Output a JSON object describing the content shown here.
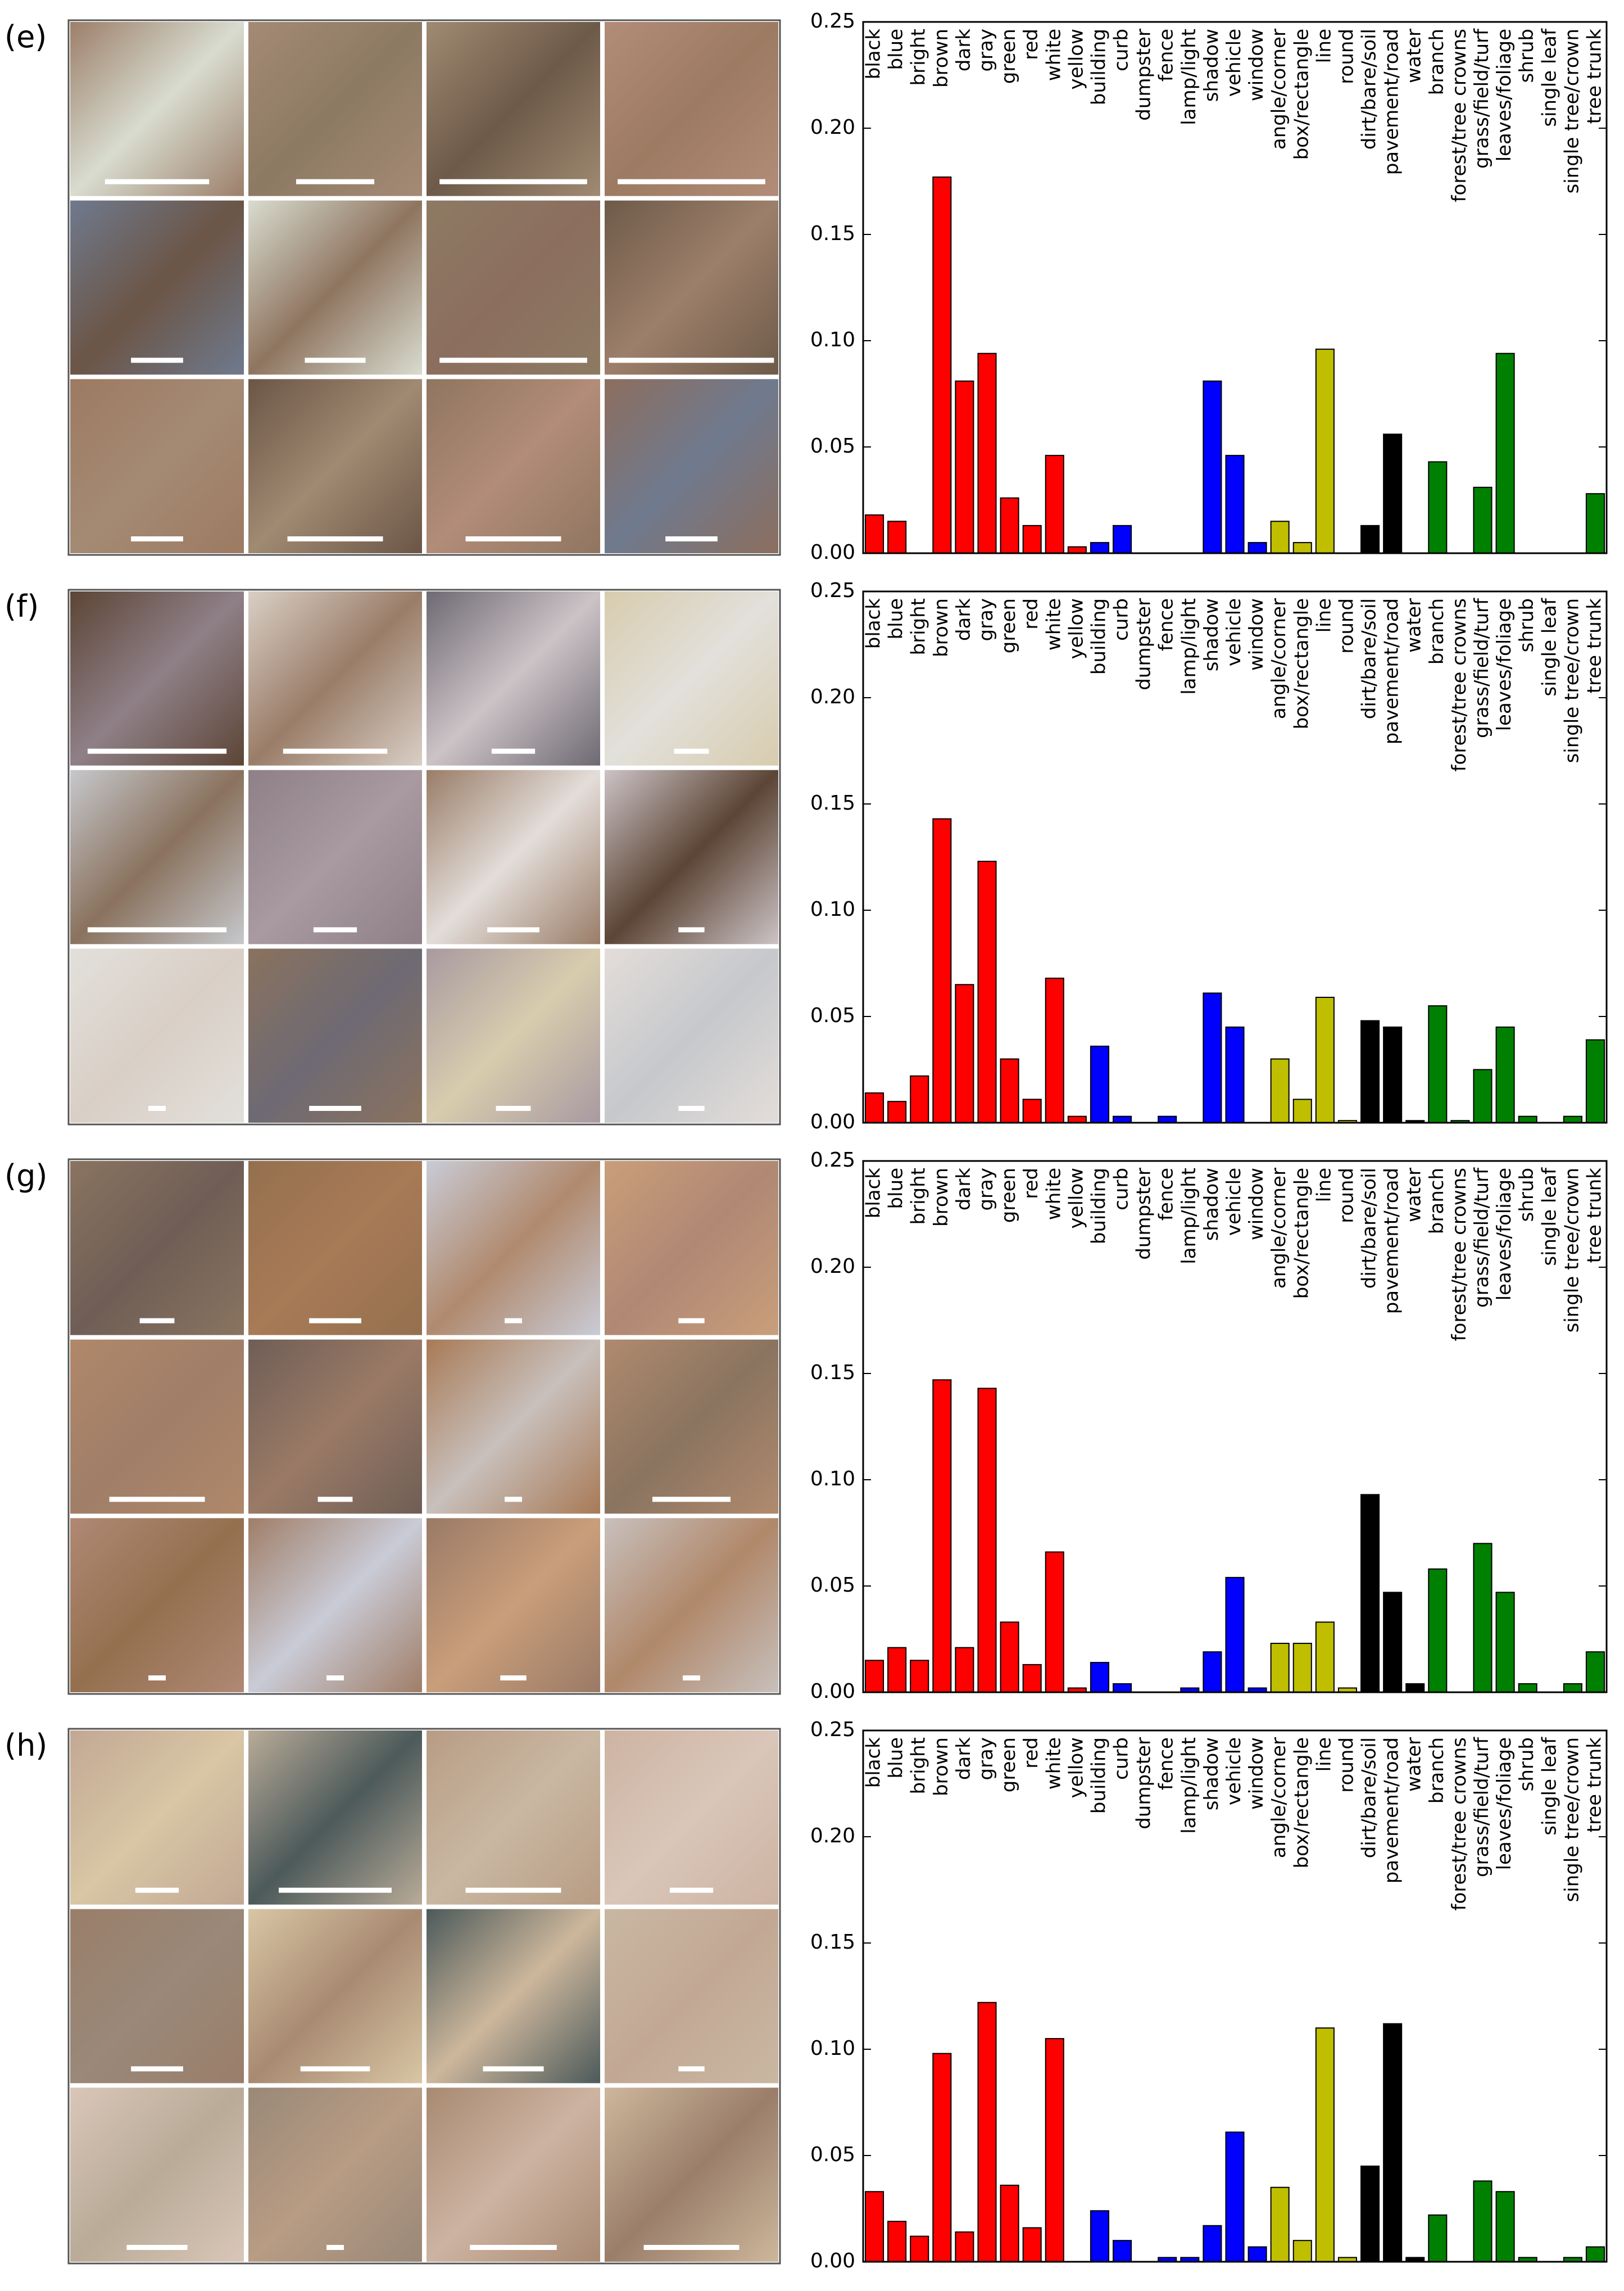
{
  "chart_data": [
    {
      "type": "bar",
      "label": "(e)",
      "categories": [
        "black",
        "blue",
        "bright",
        "brown",
        "dark",
        "gray",
        "green",
        "red",
        "white",
        "yellow",
        "building",
        "curb",
        "dumpster",
        "fence",
        "lamp/light",
        "shadow",
        "vehicle",
        "window",
        "angle/corner",
        "box/rectangle",
        "line",
        "round",
        "dirt/bare/soil",
        "pavement/road",
        "water",
        "branch",
        "forest/tree crowns",
        "grass/field/turf",
        "leaves/foliage",
        "shrub",
        "single leaf",
        "single tree/crown",
        "tree trunk"
      ],
      "values": [
        0.018,
        0.015,
        0,
        0.177,
        0.081,
        0.094,
        0.026,
        0.013,
        0.046,
        0.003,
        0.005,
        0.013,
        0,
        0,
        0,
        0.081,
        0.046,
        0.005,
        0.015,
        0.005,
        0.096,
        0,
        0.013,
        0.056,
        0,
        0.043,
        0,
        0.031,
        0.094,
        0,
        0,
        0,
        0.028
      ],
      "colors": [
        "#ff0000",
        "#ff0000",
        "#ff0000",
        "#ff0000",
        "#ff0000",
        "#ff0000",
        "#ff0000",
        "#ff0000",
        "#ff0000",
        "#ff0000",
        "#0000ff",
        "#0000ff",
        "#0000ff",
        "#0000ff",
        "#0000ff",
        "#0000ff",
        "#0000ff",
        "#0000ff",
        "#bfbf00",
        "#bfbf00",
        "#bfbf00",
        "#bfbf00",
        "#000000",
        "#000000",
        "#000000",
        "#008000",
        "#008000",
        "#008000",
        "#008000",
        "#008000",
        "#008000",
        "#008000",
        "#008000"
      ],
      "ylim": [
        0,
        0.25
      ],
      "yticks": [
        {
          "value": 0,
          "label": "0.00"
        },
        {
          "value": 0.05,
          "label": "0.05"
        },
        {
          "value": 0.1,
          "label": "0.10"
        },
        {
          "value": 0.15,
          "label": "0.15"
        },
        {
          "value": 0.2,
          "label": "0.20"
        },
        {
          "value": 0.25,
          "label": "0.25"
        }
      ]
    },
    {
      "type": "bar",
      "label": "(f)",
      "categories": [
        "black",
        "blue",
        "bright",
        "brown",
        "dark",
        "gray",
        "green",
        "red",
        "white",
        "yellow",
        "building",
        "curb",
        "dumpster",
        "fence",
        "lamp/light",
        "shadow",
        "vehicle",
        "window",
        "angle/corner",
        "box/rectangle",
        "line",
        "round",
        "dirt/bare/soil",
        "pavement/road",
        "water",
        "branch",
        "forest/tree crowns",
        "grass/field/turf",
        "leaves/foliage",
        "shrub",
        "single leaf",
        "single tree/crown",
        "tree trunk"
      ],
      "values": [
        0.014,
        0.01,
        0.022,
        0.143,
        0.065,
        0.123,
        0.03,
        0.011,
        0.068,
        0.003,
        0.036,
        0.003,
        0,
        0.003,
        0,
        0.061,
        0.045,
        0,
        0.03,
        0.011,
        0.059,
        0.001,
        0.048,
        0.045,
        0.001,
        0.055,
        0.001,
        0.025,
        0.045,
        0.003,
        0,
        0.003,
        0.039
      ],
      "colors": [
        "#ff0000",
        "#ff0000",
        "#ff0000",
        "#ff0000",
        "#ff0000",
        "#ff0000",
        "#ff0000",
        "#ff0000",
        "#ff0000",
        "#ff0000",
        "#0000ff",
        "#0000ff",
        "#0000ff",
        "#0000ff",
        "#0000ff",
        "#0000ff",
        "#0000ff",
        "#0000ff",
        "#bfbf00",
        "#bfbf00",
        "#bfbf00",
        "#bfbf00",
        "#000000",
        "#000000",
        "#000000",
        "#008000",
        "#008000",
        "#008000",
        "#008000",
        "#008000",
        "#008000",
        "#008000",
        "#008000"
      ],
      "ylim": [
        0,
        0.25
      ],
      "yticks": [
        {
          "value": 0,
          "label": "0.00"
        },
        {
          "value": 0.05,
          "label": "0.05"
        },
        {
          "value": 0.1,
          "label": "0.10"
        },
        {
          "value": 0.15,
          "label": "0.15"
        },
        {
          "value": 0.2,
          "label": "0.20"
        },
        {
          "value": 0.25,
          "label": "0.25"
        }
      ]
    },
    {
      "type": "bar",
      "label": "(g)",
      "categories": [
        "black",
        "blue",
        "bright",
        "brown",
        "dark",
        "gray",
        "green",
        "red",
        "white",
        "yellow",
        "building",
        "curb",
        "dumpster",
        "fence",
        "lamp/light",
        "shadow",
        "vehicle",
        "window",
        "angle/corner",
        "box/rectangle",
        "line",
        "round",
        "dirt/bare/soil",
        "pavement/road",
        "water",
        "branch",
        "forest/tree crowns",
        "grass/field/turf",
        "leaves/foliage",
        "shrub",
        "single leaf",
        "single tree/crown",
        "tree trunk"
      ],
      "values": [
        0.015,
        0.021,
        0.015,
        0.147,
        0.021,
        0.143,
        0.033,
        0.013,
        0.066,
        0.002,
        0.014,
        0.004,
        0,
        0,
        0.002,
        0.019,
        0.054,
        0.002,
        0.023,
        0.023,
        0.033,
        0.002,
        0.093,
        0.047,
        0.004,
        0.058,
        0,
        0.07,
        0.047,
        0.004,
        0,
        0.004,
        0.019
      ],
      "colors": [
        "#ff0000",
        "#ff0000",
        "#ff0000",
        "#ff0000",
        "#ff0000",
        "#ff0000",
        "#ff0000",
        "#ff0000",
        "#ff0000",
        "#ff0000",
        "#0000ff",
        "#0000ff",
        "#0000ff",
        "#0000ff",
        "#0000ff",
        "#0000ff",
        "#0000ff",
        "#0000ff",
        "#bfbf00",
        "#bfbf00",
        "#bfbf00",
        "#bfbf00",
        "#000000",
        "#000000",
        "#000000",
        "#008000",
        "#008000",
        "#008000",
        "#008000",
        "#008000",
        "#008000",
        "#008000",
        "#008000"
      ],
      "ylim": [
        0,
        0.25
      ],
      "yticks": [
        {
          "value": 0,
          "label": "0.00"
        },
        {
          "value": 0.05,
          "label": "0.05"
        },
        {
          "value": 0.1,
          "label": "0.10"
        },
        {
          "value": 0.15,
          "label": "0.15"
        },
        {
          "value": 0.2,
          "label": "0.20"
        },
        {
          "value": 0.25,
          "label": "0.25"
        }
      ]
    },
    {
      "type": "bar",
      "label": "(h)",
      "categories": [
        "black",
        "blue",
        "bright",
        "brown",
        "dark",
        "gray",
        "green",
        "red",
        "white",
        "yellow",
        "building",
        "curb",
        "dumpster",
        "fence",
        "lamp/light",
        "shadow",
        "vehicle",
        "window",
        "angle/corner",
        "box/rectangle",
        "line",
        "round",
        "dirt/bare/soil",
        "pavement/road",
        "water",
        "branch",
        "forest/tree crowns",
        "grass/field/turf",
        "leaves/foliage",
        "shrub",
        "single leaf",
        "single tree/crown",
        "tree trunk"
      ],
      "values": [
        0.033,
        0.019,
        0.012,
        0.098,
        0.014,
        0.122,
        0.036,
        0.016,
        0.105,
        0,
        0.024,
        0.01,
        0,
        0.002,
        0.002,
        0.017,
        0.061,
        0.007,
        0.035,
        0.01,
        0.11,
        0.002,
        0.045,
        0.112,
        0.002,
        0.022,
        0,
        0.038,
        0.033,
        0.002,
        0,
        0.002,
        0.007
      ],
      "colors": [
        "#ff0000",
        "#ff0000",
        "#ff0000",
        "#ff0000",
        "#ff0000",
        "#ff0000",
        "#ff0000",
        "#ff0000",
        "#ff0000",
        "#ff0000",
        "#0000ff",
        "#0000ff",
        "#0000ff",
        "#0000ff",
        "#0000ff",
        "#0000ff",
        "#0000ff",
        "#0000ff",
        "#bfbf00",
        "#bfbf00",
        "#bfbf00",
        "#bfbf00",
        "#000000",
        "#000000",
        "#000000",
        "#008000",
        "#008000",
        "#008000",
        "#008000",
        "#008000",
        "#008000",
        "#008000",
        "#008000"
      ],
      "ylim": [
        0,
        0.25
      ],
      "yticks": [
        {
          "value": 0,
          "label": "0.00"
        },
        {
          "value": 0.05,
          "label": "0.05"
        },
        {
          "value": 0.1,
          "label": "0.10"
        },
        {
          "value": 0.15,
          "label": "0.15"
        },
        {
          "value": 0.2,
          "label": "0.20"
        },
        {
          "value": 0.25,
          "label": "0.25"
        }
      ]
    }
  ]
}
